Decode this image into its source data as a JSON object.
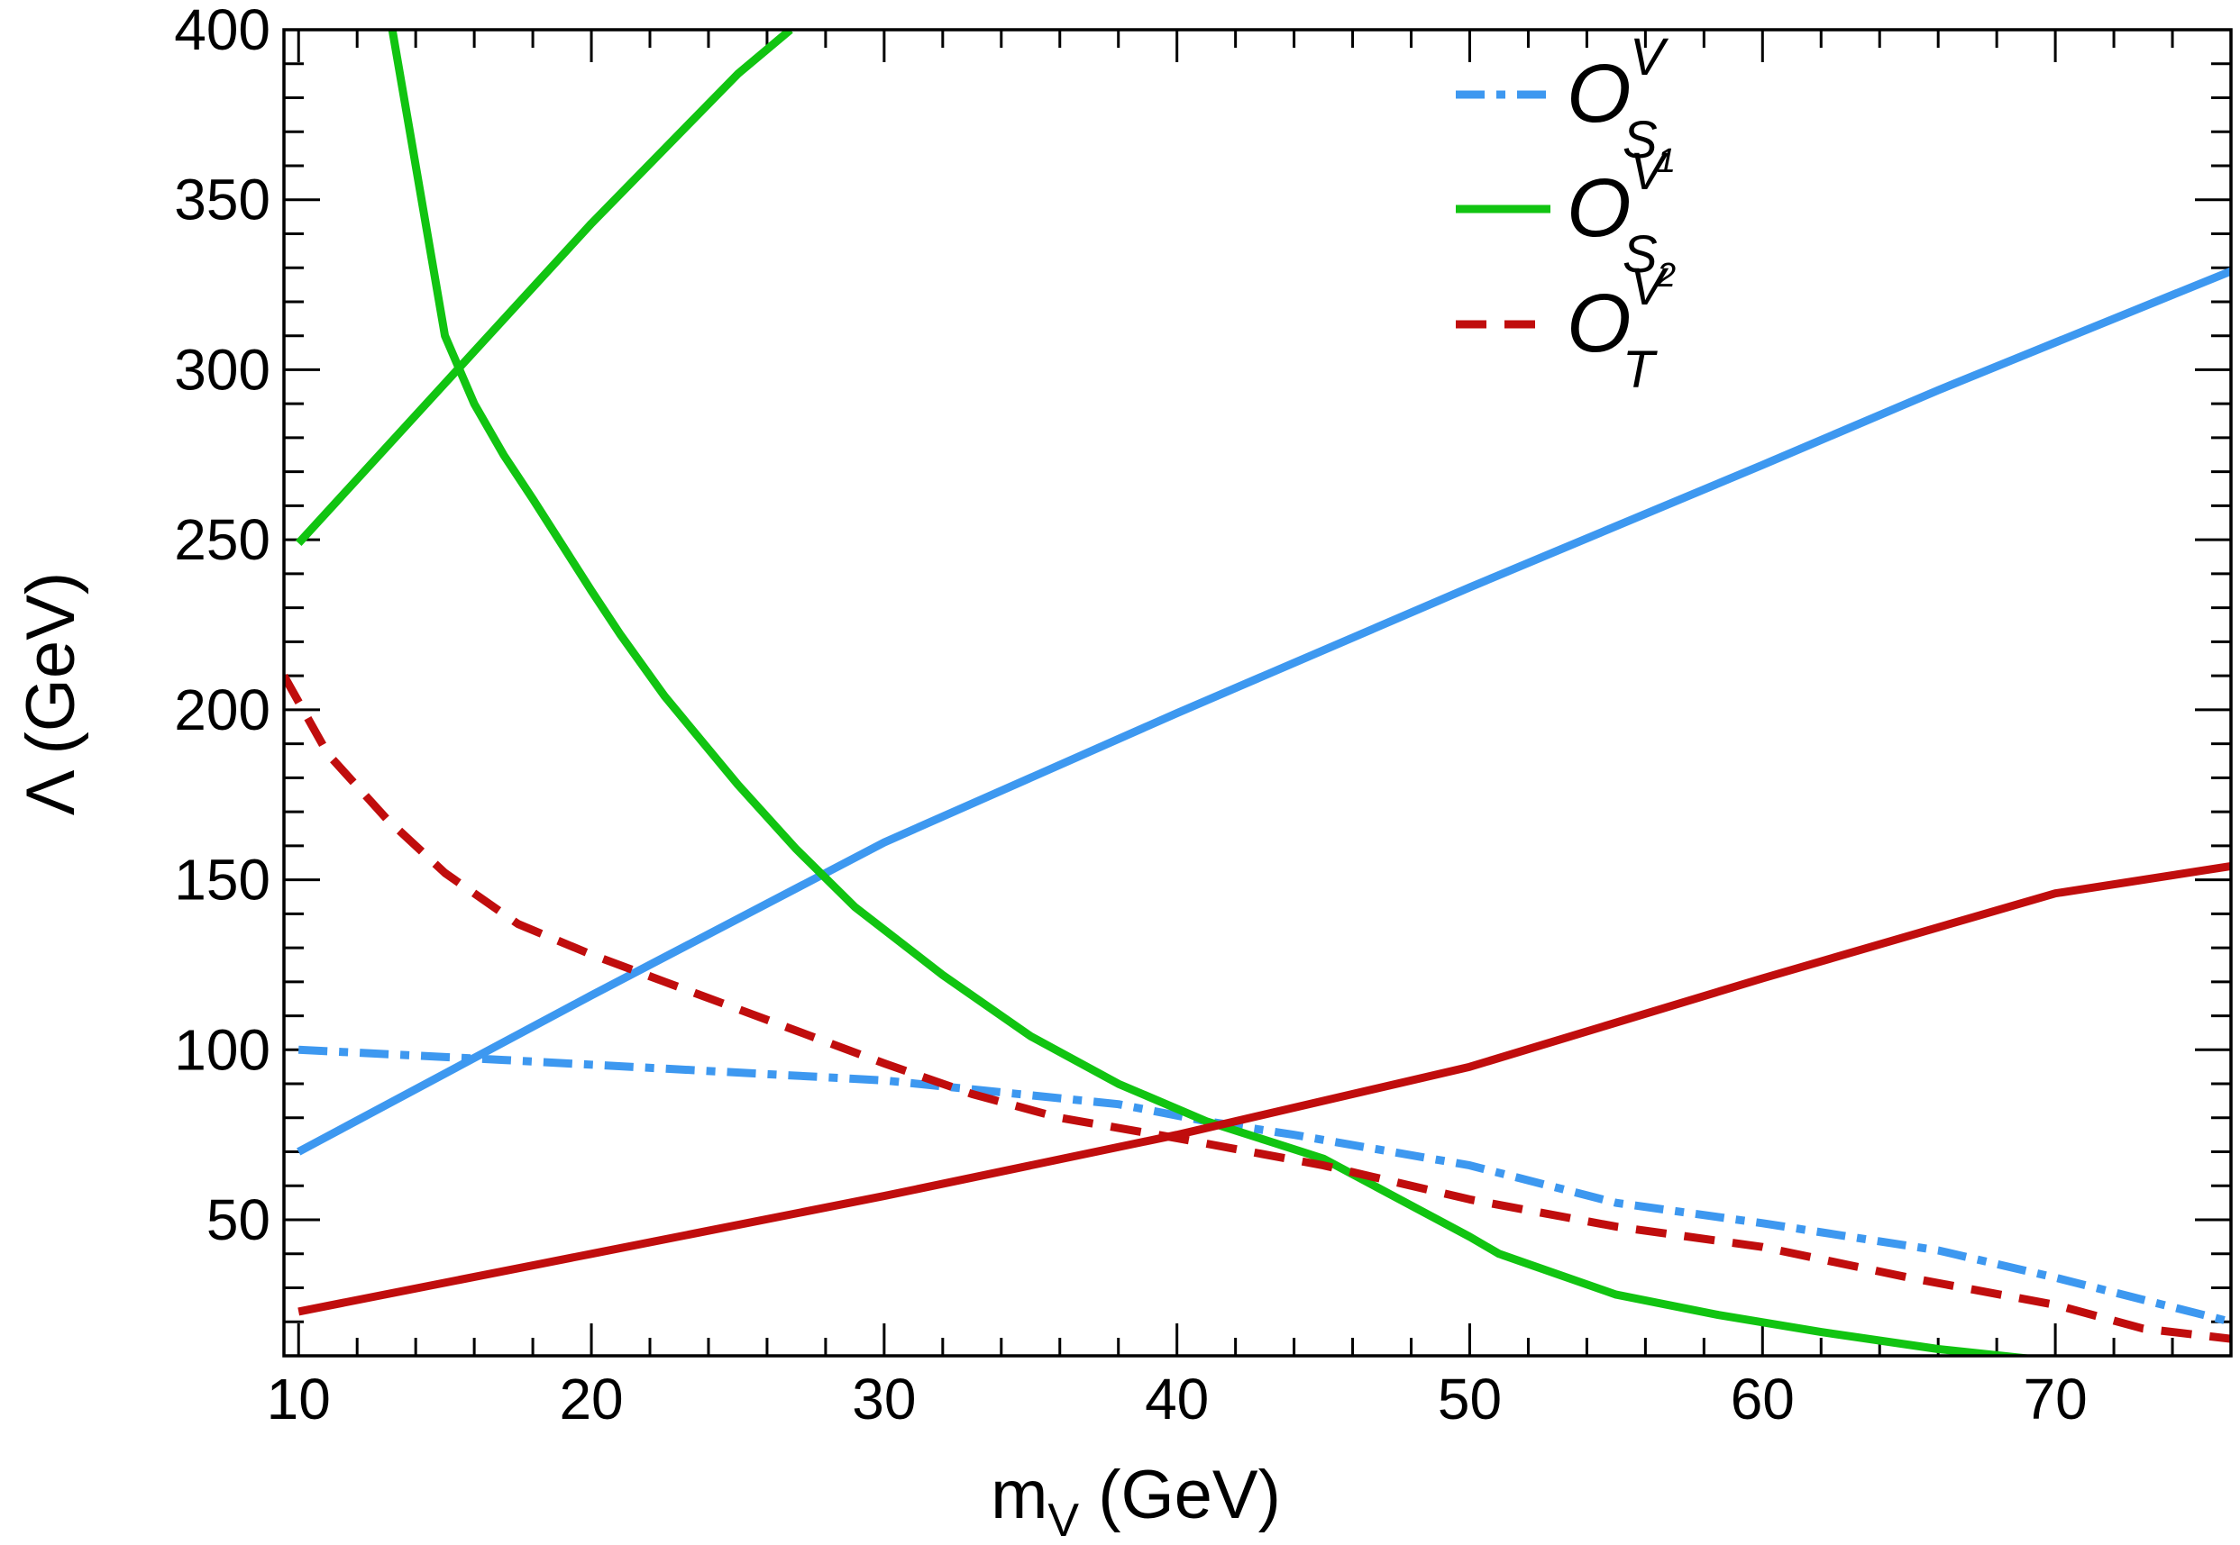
{
  "chart_data": {
    "type": "line",
    "xlabel": "m",
    "xlabel_sub": "V",
    "xlabel_unit": " (GeV)",
    "ylabel": "Λ (GeV)",
    "xlim": [
      9.5,
      76
    ],
    "ylim": [
      10,
      400
    ],
    "x_ticks": [
      10,
      20,
      30,
      40,
      50,
      60,
      70
    ],
    "y_ticks": [
      50,
      100,
      150,
      200,
      250,
      300,
      350,
      400
    ],
    "x_tick_labels": [
      "10",
      "20",
      "30",
      "40",
      "50",
      "60",
      "70"
    ],
    "y_tick_labels": [
      "50",
      "100",
      "150",
      "200",
      "250",
      "300",
      "350",
      "400"
    ],
    "legend": {
      "position": "top-right",
      "entries": [
        {
          "symbol": "O",
          "sup": "V",
          "sub": "S",
          "subsub": "1",
          "color": "#3d98f0",
          "dash": "dash-dot"
        },
        {
          "symbol": "O",
          "sup": "V",
          "sub": "S",
          "subsub": "2",
          "color": "#11c411",
          "dash": "solid"
        },
        {
          "symbol": "O",
          "sup": "V",
          "sub": "T",
          "subsub": "",
          "color": "#c00d0d",
          "dash": "dashed"
        }
      ]
    },
    "series": [
      {
        "color": "#3d98f0",
        "dash": "dash-dot",
        "x": [
          10,
          17,
          30,
          38,
          41,
          44,
          50,
          55,
          60,
          66,
          70,
          76
        ],
        "y": [
          100,
          97,
          91,
          84,
          79,
          75,
          66,
          55,
          49,
          41,
          33,
          20
        ]
      },
      {
        "color": "#3d98f0",
        "dash": "solid",
        "x": [
          10,
          20,
          30,
          40,
          50,
          60,
          66,
          70,
          76
        ],
        "y": [
          70,
          116,
          161,
          199,
          236,
          272,
          294,
          308,
          329
        ]
      },
      {
        "color": "#11c411",
        "dash": "solid",
        "x": [
          13.2,
          14,
          15,
          16,
          17,
          18,
          20,
          21,
          22.5,
          25,
          27,
          29,
          32,
          35,
          38,
          41,
          45,
          50,
          51,
          55,
          58.5,
          62,
          66,
          69.3
        ],
        "y": [
          400,
          360,
          310,
          290,
          275,
          262,
          235,
          222,
          204,
          178,
          159,
          142,
          122,
          104,
          90,
          79,
          68,
          45,
          40,
          28,
          22,
          17,
          12,
          9
        ]
      },
      {
        "color": "#11c411",
        "dash": "solid",
        "x": [
          10,
          15,
          20,
          25,
          26.8
        ],
        "y": [
          249,
          296,
          343,
          387,
          400
        ]
      },
      {
        "color": "#c00d0d",
        "dash": "dashed",
        "x": [
          9.5,
          11,
          13,
          15,
          17.5,
          20,
          22.5,
          25,
          30,
          33,
          36,
          40,
          45,
          50,
          55,
          60,
          65,
          70,
          73,
          76
        ],
        "y": [
          210,
          187,
          168,
          152,
          137,
          128,
          120,
          112,
          96,
          87,
          80,
          74,
          66,
          56,
          48,
          42,
          33,
          25,
          18,
          15
        ]
      },
      {
        "color": "#c00d0d",
        "dash": "solid",
        "x": [
          10,
          20,
          30,
          40,
          50,
          60,
          70,
          76
        ],
        "y": [
          23,
          40,
          57,
          75,
          95,
          121,
          146,
          154
        ]
      }
    ]
  }
}
